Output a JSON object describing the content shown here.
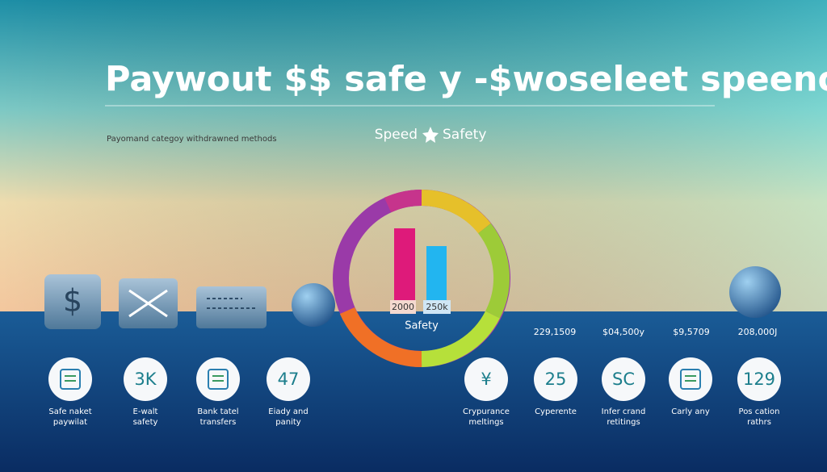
{
  "title": "Paywout $$ safe y -$woseleet speeno",
  "subtitle": "Payomand categoy withdrawned methods",
  "legend": [
    "Speed",
    "Safety"
  ],
  "gauge": {
    "bar_labels": [
      "2000",
      "250k"
    ],
    "label": "Safety"
  },
  "tile_symbol": "$",
  "stats": [
    "229,1509",
    "$04,500y",
    "$9,5709",
    "208,000J"
  ],
  "left_items": [
    {
      "lines": [
        "Safe naket",
        "paywilat"
      ]
    },
    {
      "badge": "3K",
      "lines": [
        "E-walt",
        "safety"
      ]
    },
    {
      "lines": [
        "Bank tatel",
        "transfers"
      ]
    },
    {
      "badge": "47",
      "lines": [
        "Eiady and",
        "panity"
      ]
    }
  ],
  "right_items": [
    {
      "badge": "¥",
      "lines": [
        "Crypurance",
        "meltings"
      ]
    },
    {
      "badge": "25",
      "lines": [
        "Cyperente"
      ]
    },
    {
      "badge": "SC",
      "lines": [
        "Infer crand",
        "retitings"
      ]
    },
    {
      "lines": [
        "Carly any"
      ]
    },
    {
      "badge": "129",
      "lines": [
        "Pos cation",
        "rathrs"
      ]
    }
  ]
}
